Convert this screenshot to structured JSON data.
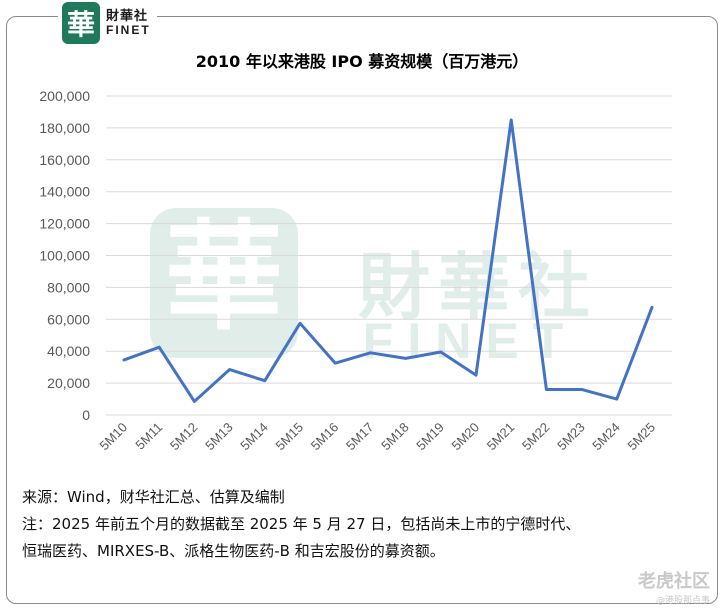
{
  "logo": {
    "glyph": "華",
    "name_cn": "財華社",
    "name_en": "FINET"
  },
  "watermark": {
    "name_cn": "財華社",
    "name_en": "FINET"
  },
  "chart_data": {
    "type": "line",
    "title": "2010 年以来港股 IPO 募资规模（百万港元）",
    "categories": [
      "5M10",
      "5M11",
      "5M12",
      "5M13",
      "5M14",
      "5M15",
      "5M16",
      "5M17",
      "5M18",
      "5M19",
      "5M20",
      "5M21",
      "5M22",
      "5M23",
      "5M24",
      "5M25"
    ],
    "series": [
      {
        "values": [
          34500,
          42500,
          8500,
          28500,
          21500,
          57500,
          32500,
          39000,
          35500,
          39500,
          25000,
          185000,
          16000,
          16000,
          10000,
          67500
        ],
        "color": "#4472c4"
      }
    ],
    "ylim": [
      0,
      200000
    ],
    "yticks": [
      "0",
      "20,000",
      "40,000",
      "60,000",
      "80,000",
      "100,000",
      "120,000",
      "140,000",
      "160,000",
      "180,000",
      "200,000"
    ],
    "grid": true
  },
  "notes": {
    "source": "来源：Wind，财华社汇总、估算及编制",
    "note_line1": "注：2025 年前五个月的数据截至 2025 年 5 月 27 日，包括尚未上市的宁德时代、",
    "note_line2": "恒瑞医药、MIRXES-B、派格生物医药-B 和吉宏股份的募资额。"
  },
  "brand": {
    "main": "老虎社区",
    "sub": "@港股那点事"
  }
}
